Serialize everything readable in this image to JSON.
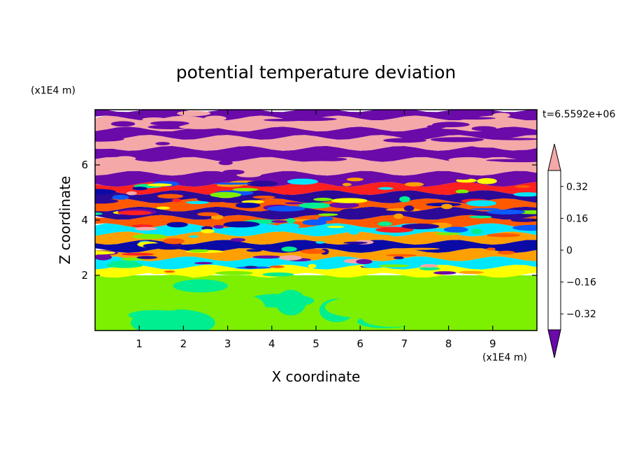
{
  "chart_data": {
    "type": "heatmap",
    "title": "potential temperature deviation",
    "xlabel": "X coordinate",
    "ylabel": "Z coordinate",
    "x_unit_label": "(x1E4 m)",
    "y_unit_label": "(x1E4 m)",
    "time_label": "t=6.5592e+06",
    "xlim": [
      0,
      10
    ],
    "ylim": [
      0,
      8
    ],
    "x_ticks": [
      1,
      2,
      3,
      4,
      5,
      6,
      7,
      8,
      9
    ],
    "y_ticks": [
      2,
      4,
      6
    ],
    "x_tick_labels": [
      "1",
      "2",
      "3",
      "4",
      "5",
      "6",
      "7",
      "8",
      "9"
    ],
    "y_tick_labels": [
      "2",
      "4",
      "6"
    ],
    "colorbar": {
      "levels": [
        -0.4,
        -0.32,
        -0.24,
        -0.16,
        -0.08,
        0,
        0.08,
        0.16,
        0.24,
        0.32,
        0.4
      ],
      "labeled_values": [
        0.32,
        0.16,
        0,
        -0.16,
        -0.32
      ],
      "labels": [
        "0.32",
        "0.16",
        "0",
        "−0.16",
        "−0.32"
      ],
      "colors": [
        "#6a0aa8",
        "#2b0a98",
        "#0a0aa6",
        "#0a5aff",
        "#00e6ff",
        "#00ee90",
        "#7cf000",
        "#ffff00",
        "#ffa000",
        "#ff5a00",
        "#ff2020",
        "#f5a8a8"
      ],
      "extend": "both"
    },
    "bands": [
      {
        "z_from": 0.0,
        "z_to": 2.0,
        "level": 0.05,
        "note": "green layer"
      },
      {
        "z_from": 2.0,
        "z_to": 2.3,
        "level": 0.12
      },
      {
        "z_from": 2.3,
        "z_to": 2.6,
        "level": -0.12
      },
      {
        "z_from": 2.6,
        "z_to": 2.9,
        "level": 0.18
      },
      {
        "z_from": 2.9,
        "z_to": 3.2,
        "level": -0.28
      },
      {
        "z_from": 3.2,
        "z_to": 3.5,
        "level": 0.2
      },
      {
        "z_from": 3.5,
        "z_to": 3.8,
        "level": -0.1
      },
      {
        "z_from": 3.8,
        "z_to": 4.1,
        "level": 0.24
      },
      {
        "z_from": 4.1,
        "z_to": 4.4,
        "level": -0.34
      },
      {
        "z_from": 4.4,
        "z_to": 4.7,
        "level": 0.3
      },
      {
        "z_from": 4.7,
        "z_to": 5.0,
        "level": -0.38
      },
      {
        "z_from": 5.0,
        "z_to": 5.3,
        "level": 0.36
      },
      {
        "z_from": 5.3,
        "z_to": 5.7,
        "level": -0.42
      },
      {
        "z_from": 5.7,
        "z_to": 6.2,
        "level": 0.45
      },
      {
        "z_from": 6.2,
        "z_to": 6.6,
        "level": -0.45
      },
      {
        "z_from": 6.6,
        "z_to": 7.0,
        "level": 0.45
      },
      {
        "z_from": 7.0,
        "z_to": 7.3,
        "level": -0.45
      },
      {
        "z_from": 7.3,
        "z_to": 7.7,
        "level": 0.45
      },
      {
        "z_from": 7.7,
        "z_to": 8.0,
        "level": -0.45
      }
    ]
  }
}
